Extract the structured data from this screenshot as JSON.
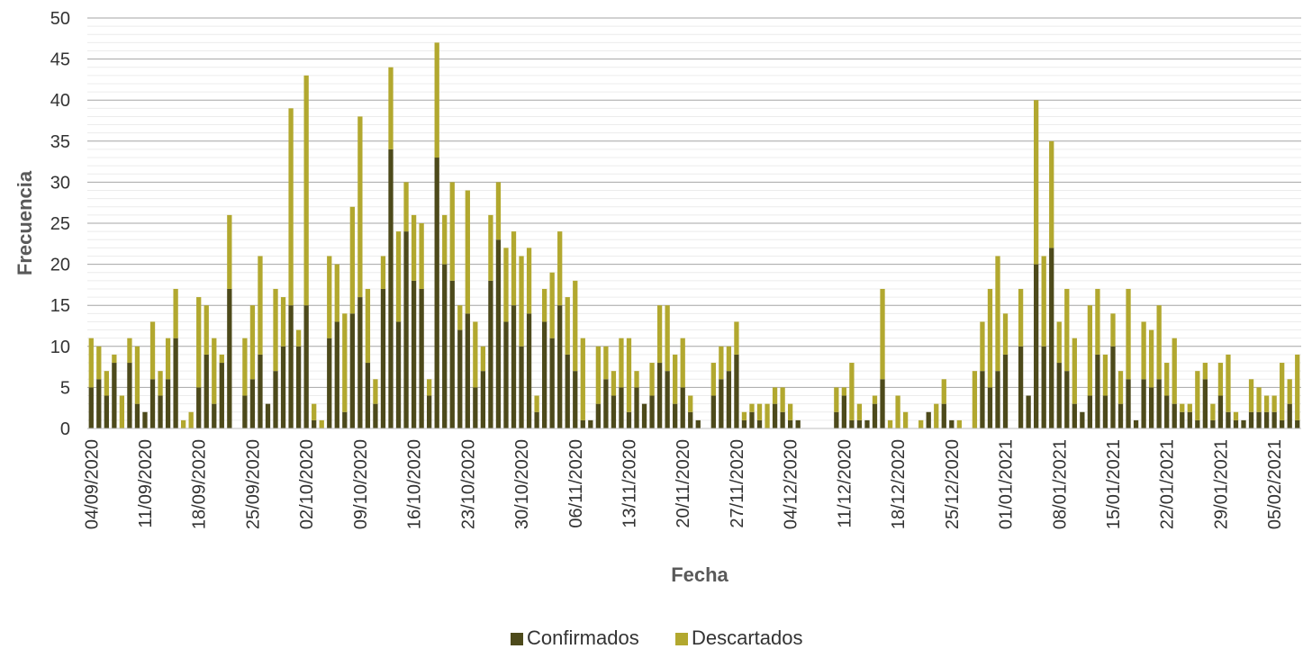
{
  "chart_data": {
    "type": "bar",
    "stacked": true,
    "xlabel": "Fecha",
    "ylabel": "Frecuencia",
    "ylim": [
      0,
      50
    ],
    "y_ticks": [
      0,
      5,
      10,
      15,
      20,
      25,
      30,
      35,
      40,
      45,
      50
    ],
    "grid": true,
    "legend_position": "bottom",
    "x_start": "04/09/2020",
    "x_tick_labels": [
      "04/09/2020",
      "11/09/2020",
      "18/09/2020",
      "25/09/2020",
      "02/10/2020",
      "09/10/2020",
      "16/10/2020",
      "23/10/2020",
      "30/10/2020",
      "06/11/2020",
      "13/11/2020",
      "20/11/2020",
      "27/11/2020",
      "04/12/2020",
      "11/12/2020",
      "18/12/2020",
      "25/12/2020",
      "01/01/2021",
      "08/01/2021",
      "15/01/2021",
      "22/01/2021",
      "29/01/2021",
      "05/02/2021"
    ],
    "x_tick_every": 7,
    "series": [
      {
        "name": "Confirmados",
        "color": "#4d4a1b",
        "values": [
          5,
          6,
          4,
          8,
          0,
          8,
          3,
          2,
          6,
          4,
          6,
          11,
          0,
          0,
          5,
          9,
          3,
          8,
          17,
          0,
          4,
          6,
          9,
          3,
          7,
          10,
          15,
          10,
          15,
          1,
          0,
          11,
          13,
          2,
          14,
          16,
          8,
          3,
          17,
          34,
          13,
          24,
          18,
          17,
          4,
          33,
          20,
          18,
          12,
          14,
          5,
          7,
          18,
          23,
          13,
          15,
          10,
          14,
          2,
          13,
          11,
          15,
          9,
          7,
          1,
          1,
          3,
          6,
          4,
          5,
          2,
          5,
          3,
          4,
          8,
          7,
          3,
          5,
          2,
          1,
          0,
          4,
          6,
          7,
          9,
          1,
          2,
          1,
          0,
          3,
          2,
          1,
          1,
          0,
          0,
          0,
          0,
          2,
          4,
          1,
          1,
          1,
          3,
          6,
          0,
          0,
          0,
          0,
          0,
          2,
          0,
          3,
          1,
          0,
          0,
          0,
          7,
          5,
          7,
          9,
          0,
          10,
          4,
          20,
          10,
          22,
          8,
          7,
          3,
          2,
          4,
          9,
          4,
          10,
          3,
          6,
          1,
          6,
          5,
          6,
          4,
          3,
          2,
          2,
          1,
          6,
          1,
          4,
          2,
          1,
          1,
          2,
          2,
          2,
          2,
          1,
          3,
          1
        ],
        "totals": [
          11,
          10,
          7,
          9,
          4,
          11,
          10,
          2,
          13,
          7,
          11,
          17,
          1,
          2,
          16,
          15,
          11,
          9,
          26,
          0,
          11,
          15,
          21,
          3,
          17,
          16,
          39,
          12,
          43,
          3,
          1,
          21,
          20,
          14,
          27,
          38,
          17,
          6,
          21,
          44,
          24,
          30,
          26,
          25,
          6,
          47,
          26,
          30,
          15,
          29,
          13,
          10,
          26,
          30,
          22,
          24,
          21,
          22,
          4,
          17,
          19,
          24,
          16,
          18,
          11,
          1,
          10,
          10,
          7,
          11,
          11,
          7,
          3,
          8,
          15,
          15,
          9,
          11,
          4,
          1,
          0,
          8,
          10,
          10,
          13,
          2,
          3,
          3,
          3,
          5,
          5,
          3,
          1,
          0,
          0,
          0,
          0,
          5,
          5,
          8,
          3,
          1,
          4,
          17,
          1,
          4,
          2,
          0,
          1,
          2,
          3,
          6,
          1,
          1,
          0,
          7,
          13,
          17,
          21,
          14,
          0,
          17,
          4,
          40,
          21,
          35,
          13,
          17,
          11,
          2,
          15,
          17,
          9,
          14,
          7,
          17,
          1,
          13,
          12,
          15,
          8,
          11,
          3,
          3,
          7,
          8,
          3,
          8,
          9,
          2,
          1,
          6,
          5,
          4,
          4,
          8,
          6,
          9
        ]
      },
      {
        "name": "Descartados",
        "color": "#b2a82f"
      }
    ]
  }
}
